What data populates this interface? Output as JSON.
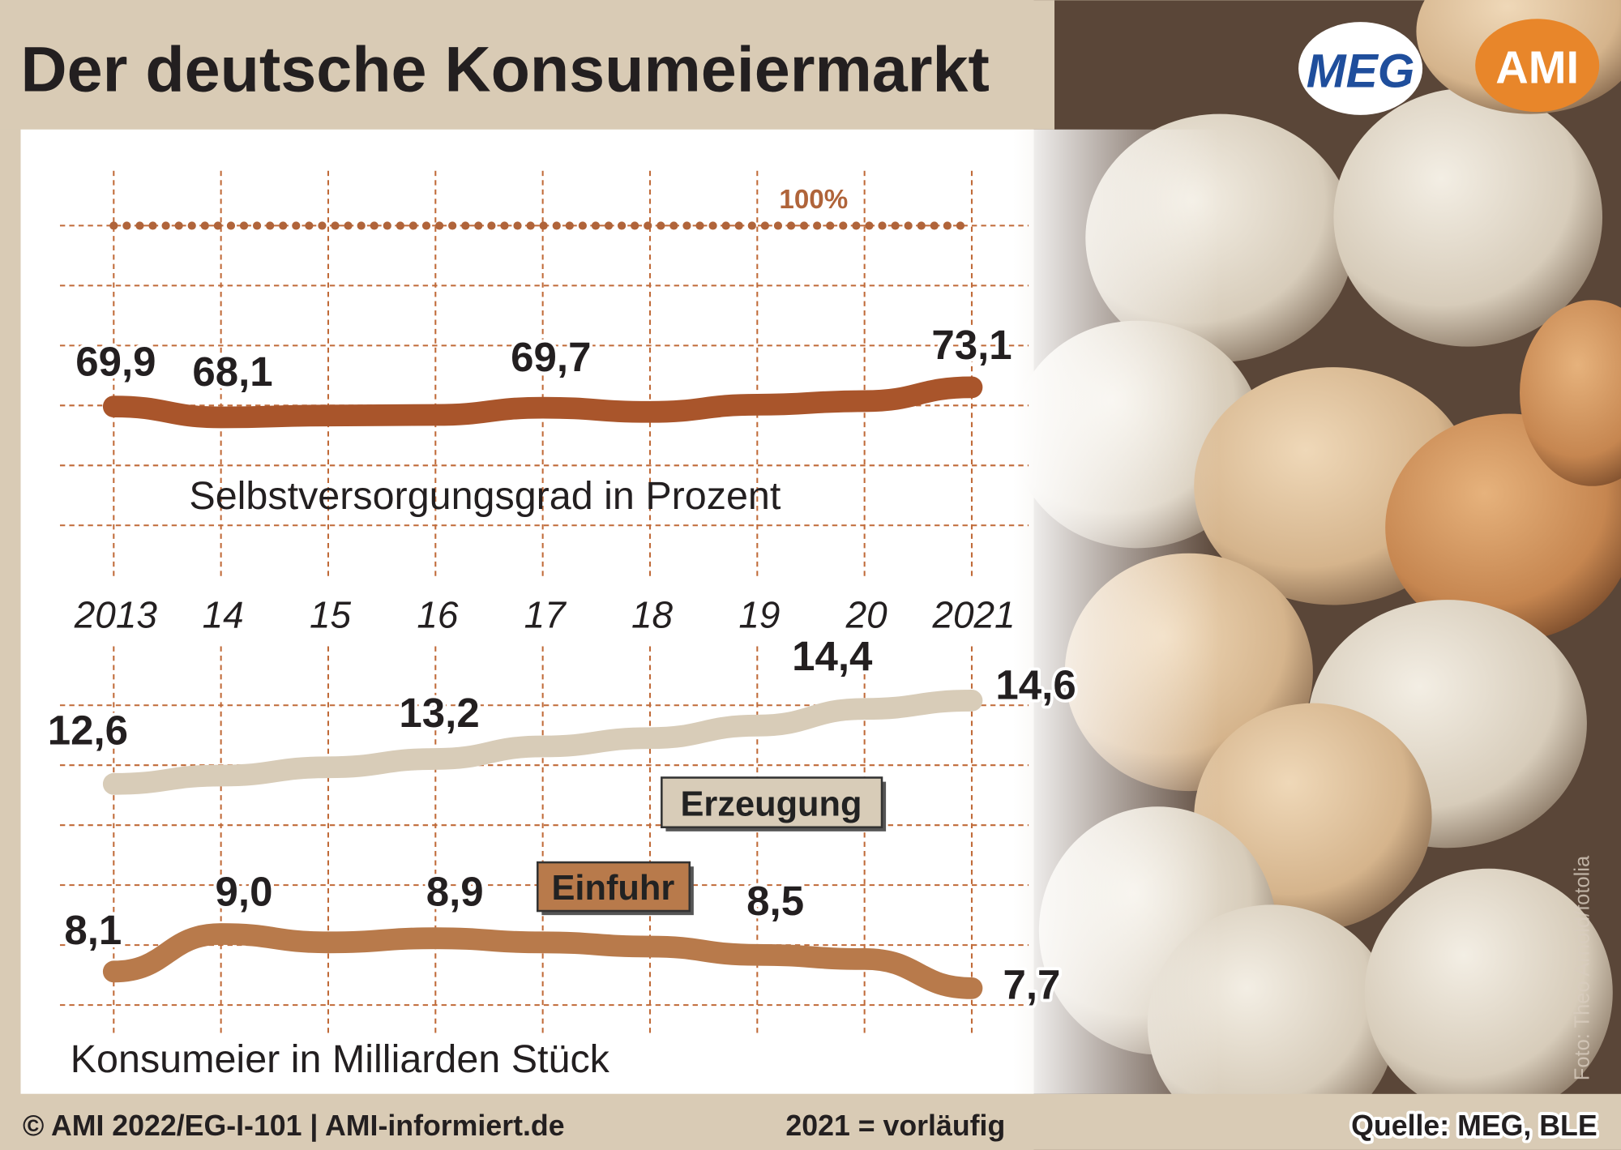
{
  "title": "Der deutsche Konsumeiermarkt",
  "logos": [
    "MEG",
    "AMI"
  ],
  "footer": {
    "left": "© AMI 2022/EG-I-101 | AMI-informiert.de",
    "middle": "2021 = vorläufig",
    "right": "Quelle: MEG, BLE"
  },
  "photo_credit": "Foto: Theo Arnold/fotolia",
  "chart_data": [
    {
      "type": "line",
      "axis_label": "Selbstversorgungsgrad in Prozent",
      "categories": [
        "2013",
        "14",
        "15",
        "16",
        "17",
        "18",
        "19",
        "20",
        "2021"
      ],
      "ylim": [
        65,
        105
      ],
      "reference_line": {
        "value": 100,
        "label": "100%",
        "color": "#b0643a"
      },
      "series": [
        {
          "name": null,
          "color": "#a9552b",
          "values": [
            69.9,
            68.1,
            68.4,
            68.5,
            69.7,
            69.0,
            70.2,
            70.8,
            73.1
          ],
          "value_labels": [
            "69,9",
            "68,1",
            null,
            null,
            "69,7",
            null,
            null,
            null,
            "73,1"
          ]
        }
      ]
    },
    {
      "type": "line",
      "axis_label": "Konsumeier in Milliarden Stück",
      "ylim": [
        7,
        16
      ],
      "series": [
        {
          "name": "Erzeugung",
          "color": "#d8ccb8",
          "values": [
            12.6,
            12.8,
            13.0,
            13.2,
            13.5,
            13.7,
            14.0,
            14.4,
            14.6
          ],
          "value_labels": [
            "12,6",
            null,
            null,
            "13,2",
            null,
            null,
            null,
            "14,4",
            "14,6"
          ]
        },
        {
          "name": "Einfuhr",
          "color": "#b87a4b",
          "values": [
            8.1,
            9.0,
            8.8,
            8.9,
            8.8,
            8.7,
            8.5,
            8.4,
            7.7
          ],
          "value_labels": [
            "8,1",
            "9,0",
            null,
            "8,9",
            null,
            null,
            "8,5",
            null,
            "7,7"
          ]
        }
      ]
    }
  ]
}
